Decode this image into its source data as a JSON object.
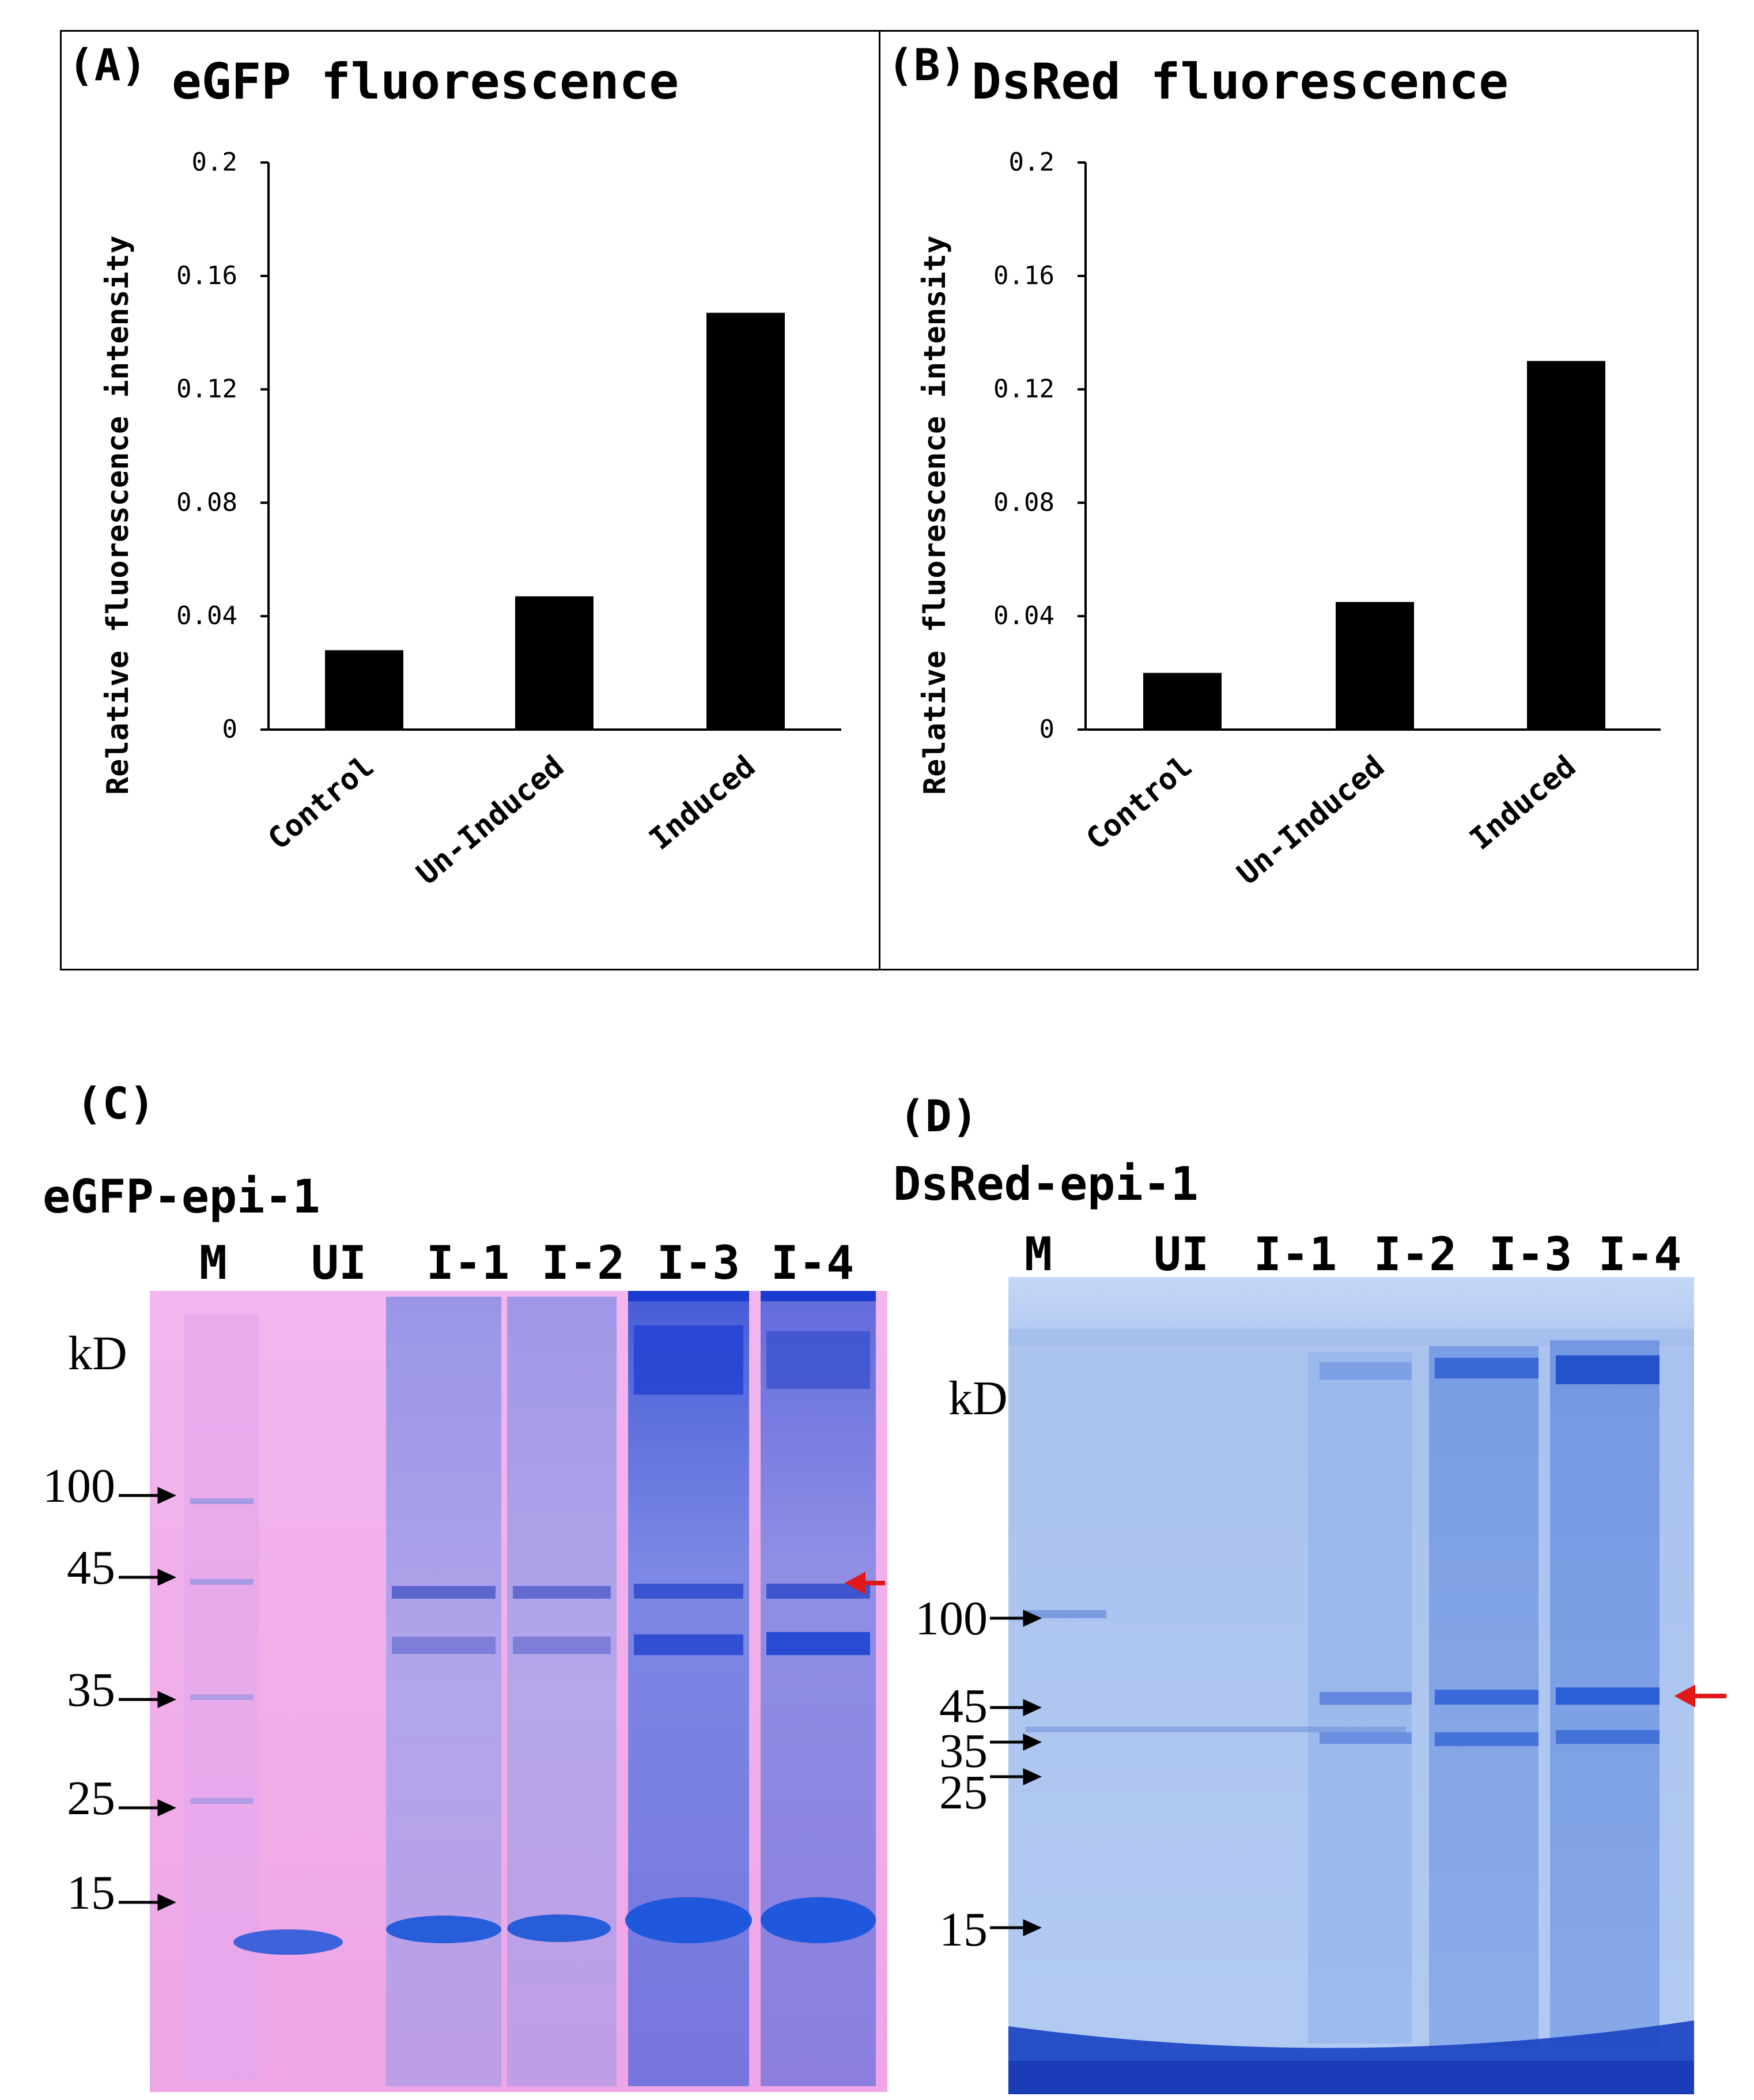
{
  "panels": {
    "A": "(A)",
    "B": "(B)",
    "C": "(C)",
    "D": "(D)"
  },
  "chart_data": [
    {
      "type": "bar",
      "title": "eGFP fluorescence",
      "xlabel": "",
      "ylabel": "Relative fluorescence intensity",
      "categories": [
        "Control",
        "Un-Induced",
        "Induced"
      ],
      "values": [
        0.028,
        0.047,
        0.147
      ],
      "ylim": [
        0,
        0.2
      ],
      "yticks": [
        "0",
        "0.04",
        "0.08",
        "0.12",
        "0.16",
        "0.2"
      ],
      "bar_color": "#000000",
      "grid": false
    },
    {
      "type": "bar",
      "title": "DsRed fluorescence",
      "xlabel": "",
      "ylabel": "Relative fluorescence intensity",
      "categories": [
        "Control",
        "Un-Induced",
        "Induced"
      ],
      "values": [
        0.02,
        0.045,
        0.13
      ],
      "ylim": [
        0,
        0.2
      ],
      "yticks": [
        "0",
        "0.04",
        "0.08",
        "0.12",
        "0.16",
        "0.2"
      ],
      "bar_color": "#000000",
      "grid": false
    }
  ],
  "gels": {
    "C": {
      "title": "eGFP-epi-1",
      "lanes": [
        "M",
        "UI",
        "I-1",
        "I-2",
        "I-3",
        "I-4"
      ],
      "unit": "kD",
      "markers": [
        "100",
        "45",
        "35",
        "25",
        "15"
      ],
      "background_color": "#f0b0e8",
      "stain_color": "#3a5ad8"
    },
    "D": {
      "title": "DsRed-epi-1",
      "lanes": [
        "M",
        "UI",
        "I-1",
        "I-2",
        "I-3",
        "I-4"
      ],
      "unit": "kD",
      "markers": [
        "100",
        "45",
        "35",
        "25",
        "15"
      ],
      "background_color": "#b8cff2",
      "stain_color": "#1f54c8"
    }
  },
  "arrow_color": "#e01818"
}
